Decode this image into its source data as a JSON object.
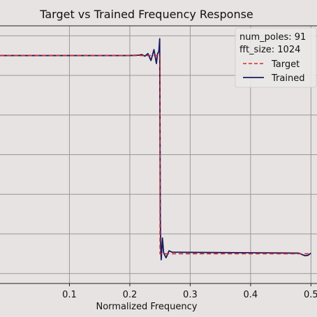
{
  "chart_data": {
    "type": "line",
    "title": "Target vs Trained Frequency Response",
    "xlabel": "Normalized Frequency",
    "ylabel": "",
    "xlim": [
      -0.015,
      0.51
    ],
    "ylim": [
      -0.15,
      1.15
    ],
    "x_ticks": [
      0.1,
      0.2,
      0.3,
      0.4,
      0.5
    ],
    "x_tick_labels": [
      "0.1",
      "0.2",
      "0.3",
      "0.4",
      "0.5"
    ],
    "grid": true,
    "legend": {
      "placement": "top-right",
      "annotations": [
        "num_poles: 91",
        "fft_size: 1024"
      ],
      "entries": [
        "Target",
        "Trained"
      ]
    },
    "series": [
      {
        "name": "Target",
        "color": "#d62728",
        "style": "dashed",
        "x": [
          -0.015,
          0.25,
          0.25,
          0.5
        ],
        "y": [
          1.0,
          1.0,
          0.0,
          0.0
        ]
      },
      {
        "name": "Trained",
        "color": "#1a1a5e",
        "style": "solid",
        "x": [
          -0.015,
          0.1,
          0.2,
          0.215,
          0.22,
          0.225,
          0.23,
          0.235,
          0.24,
          0.244,
          0.246,
          0.248,
          0.2495,
          0.2505,
          0.251,
          0.252,
          0.254,
          0.256,
          0.26,
          0.265,
          0.27,
          0.3,
          0.4,
          0.45,
          0.48,
          0.49,
          0.495,
          0.5
        ],
        "y": [
          1.0,
          1.0,
          1.0,
          1.002,
          1.005,
          0.997,
          1.01,
          0.975,
          1.03,
          0.96,
          1.01,
          1.02,
          1.085,
          0.2,
          0.05,
          -0.03,
          0.08,
          0.005,
          -0.02,
          0.015,
          0.008,
          0.007,
          0.005,
          0.004,
          0.003,
          -0.01,
          -0.008,
          0.003
        ]
      }
    ]
  }
}
